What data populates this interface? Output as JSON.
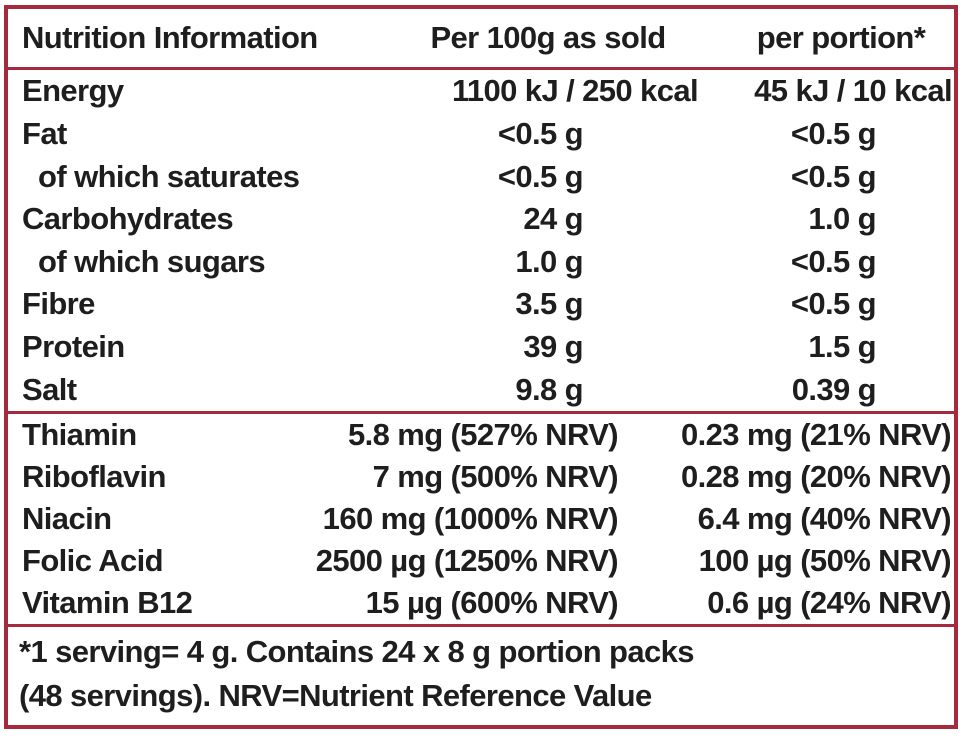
{
  "colors": {
    "border_red": "#A52A3E",
    "text": "#1E1E1E",
    "background": "#FFFFFF"
  },
  "header": {
    "title": "Nutrition Information",
    "per100_label": "Per 100g as sold",
    "portion_label": "per portion*"
  },
  "nutrients": [
    {
      "label": "Energy",
      "per100": "1100 kJ / 250 kcal",
      "portion": "45 kJ / 10 kcal"
    },
    {
      "label": "Fat",
      "per100": "<0.5 g",
      "portion": "<0.5 g"
    },
    {
      "label": "of which saturates",
      "per100": "<0.5 g",
      "portion": "<0.5 g"
    },
    {
      "label": "Carbohydrates",
      "per100": "24 g",
      "portion": "1.0 g"
    },
    {
      "label": "of which sugars",
      "per100": "1.0 g",
      "portion": "<0.5 g"
    },
    {
      "label": "Fibre",
      "per100": "3.5 g",
      "portion": "<0.5 g"
    },
    {
      "label": "Protein",
      "per100": "39 g",
      "portion": "1.5 g"
    },
    {
      "label": "Salt",
      "per100": "9.8 g",
      "portion": "0.39 g"
    }
  ],
  "vitamins": [
    {
      "label": "Thiamin",
      "per100": "5.8 mg (527% NRV)",
      "portion": "0.23 mg (21% NRV)"
    },
    {
      "label": "Riboflavin",
      "per100": "7 mg (500% NRV)",
      "portion": "0.28 mg (20% NRV)"
    },
    {
      "label": "Niacin",
      "per100": "160 mg (1000% NRV)",
      "portion": "6.4 mg (40% NRV)"
    },
    {
      "label": "Folic Acid",
      "per100": "2500 µg (1250% NRV)",
      "portion": "100 µg (50% NRV)"
    },
    {
      "label": "Vitamin B12",
      "per100": "15 µg (600% NRV)",
      "portion": "0.6 µg (24% NRV)"
    }
  ],
  "footnote": {
    "line1": "*1 serving= 4 g. Contains 24 x 8 g portion packs",
    "line2": "(48 servings). NRV=Nutrient Reference Value"
  }
}
